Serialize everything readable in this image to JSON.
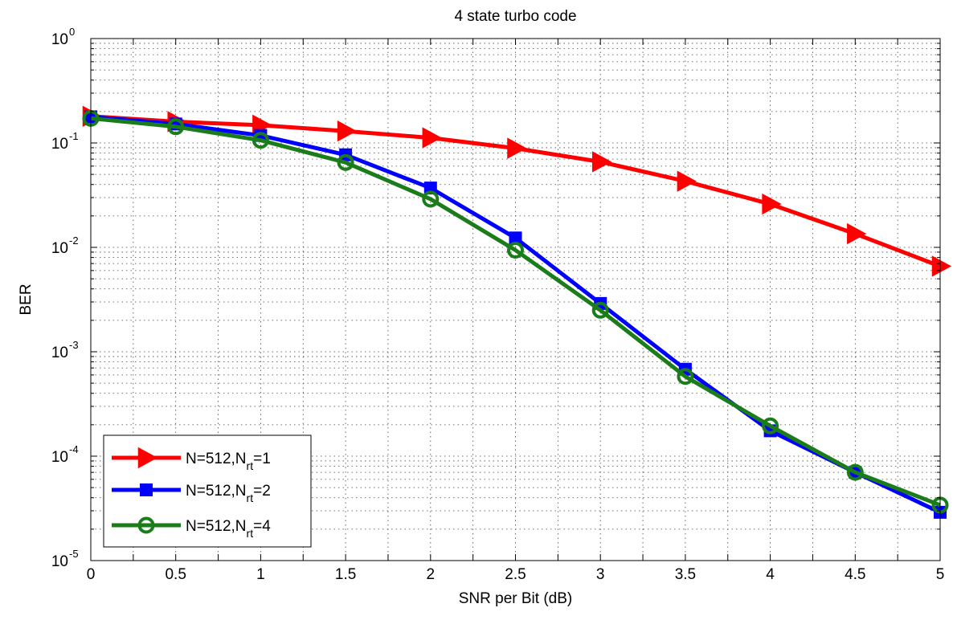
{
  "chart_data": {
    "type": "line",
    "title": "4 state turbo code",
    "xlabel": "SNR per Bit (dB)",
    "ylabel": "BER",
    "xlim": [
      0,
      5
    ],
    "ylim": [
      1e-05,
      1
    ],
    "yscale": "log",
    "grid": true,
    "legend_position": "bottom-left",
    "x": [
      0,
      0.5,
      1,
      1.5,
      2,
      2.5,
      3,
      3.5,
      4,
      4.5,
      5
    ],
    "x_ticks": [
      "0",
      "0.5",
      "1",
      "1.5",
      "2",
      "2.5",
      "3",
      "3.5",
      "4",
      "4.5",
      "5"
    ],
    "y_ticks": [
      {
        "base": "10",
        "exp": "0",
        "value": 1
      },
      {
        "base": "10",
        "exp": "-1",
        "value": 0.1
      },
      {
        "base": "10",
        "exp": "-2",
        "value": 0.01
      },
      {
        "base": "10",
        "exp": "-3",
        "value": 0.001
      },
      {
        "base": "10",
        "exp": "-4",
        "value": 0.0001
      },
      {
        "base": "10",
        "exp": "-5",
        "value": 1e-05
      }
    ],
    "series": [
      {
        "legend_main": "N=512,N",
        "legend_sub": "rt",
        "legend_tail": "=1",
        "color": "#ff0000",
        "marker": "triangle-right",
        "values": [
          0.18,
          0.16,
          0.148,
          0.13,
          0.112,
          0.089,
          0.066,
          0.043,
          0.026,
          0.0135,
          0.0066
        ]
      },
      {
        "legend_main": "N=512,N",
        "legend_sub": "rt",
        "legend_tail": "=2",
        "color": "#0000ff",
        "marker": "square",
        "values": [
          0.178,
          0.152,
          0.118,
          0.077,
          0.037,
          0.0123,
          0.0029,
          0.00068,
          0.000175,
          7e-05,
          2.9e-05
        ]
      },
      {
        "legend_main": "N=512,N",
        "legend_sub": "rt",
        "legend_tail": "=4",
        "color": "#1a7d1a",
        "marker": "circle",
        "values": [
          0.172,
          0.143,
          0.106,
          0.065,
          0.029,
          0.0094,
          0.0025,
          0.00058,
          0.000195,
          7e-05,
          3.4e-05
        ]
      }
    ]
  }
}
